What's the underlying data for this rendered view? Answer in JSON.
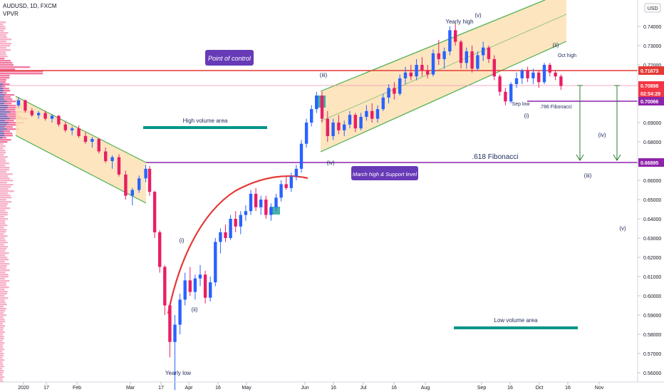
{
  "header": {
    "symbol": "AUDUSD, 1D, FXCM",
    "indicator": "VPVR",
    "currency": "USD"
  },
  "chart_data": {
    "type": "candlestick",
    "title": "AUDUSD, 1D, FXCM",
    "y_axis": {
      "range": [
        0.5555,
        0.761
      ],
      "ticks": [
        "0.74000",
        "0.73000",
        "0.72000",
        "0.71000",
        "0.70000",
        "0.69000",
        "0.68000",
        "0.67000",
        "0.66000",
        "0.65000",
        "0.64000",
        "0.63000",
        "0.62000",
        "0.61000",
        "0.60000",
        "0.59000",
        "0.58000",
        "0.57000",
        "0.56000"
      ]
    },
    "x_axis": {
      "ticks": [
        "2020",
        "17",
        "Feb",
        "Mar",
        "17",
        "Apr",
        "16",
        "May",
        "Jun",
        "16",
        "Jul",
        "16",
        "Aug",
        "Sep",
        "16",
        "Oct",
        "16",
        "Nov"
      ]
    },
    "price_tags": [
      {
        "value": "0.71673",
        "color": "#e53935"
      },
      {
        "value": "0.70898",
        "color": "#f23645"
      },
      {
        "value": "02:54:29",
        "color": "#f23645"
      },
      {
        "value": "0.70066",
        "color": "#8e24aa"
      },
      {
        "value": "0.66895",
        "color": "#8e24aa"
      }
    ],
    "levels": [
      {
        "name": "point-of-control",
        "price": 0.71673,
        "color": "#e53935"
      },
      {
        "name": "fib-786",
        "price": 0.70066,
        "color": "#8e24aa"
      },
      {
        "name": "fib-618",
        "price": 0.66895,
        "color": "#8e24aa"
      }
    ],
    "annotations": {
      "point_of_control": "Point of control",
      "high_volume_area": "High volume area",
      "low_volume_area": "Low volume area",
      "march_high": "March high & Support level",
      "fib_618": ".618 Fibonacci",
      "fib_786": ".786 Fibonacci",
      "yearly_high": "Yearly high",
      "yearly_low": "Yearly low",
      "sep_low": "Sep low",
      "oct_high": "Oct high",
      "wave_i": "(i)",
      "wave_ii": "(ii)",
      "wave_iii": "(iii)",
      "wave_iv": "(iv)",
      "wave_v": "(v)",
      "wave_iii_top": "(iii)",
      "wave_iv_low": "(iv)",
      "wave_v_high": "(v)",
      "wave_i_sep": "(i)",
      "wave_ii_oct": "(ii)",
      "proj_iii": "(iii)",
      "proj_iv": "(iv)",
      "proj_v": "(v)"
    },
    "colors": {
      "up": "#2962ff",
      "down": "#e91e63",
      "channel_fill": "#fbe0b4",
      "channel_line": "#4caf50",
      "poc_line": "#e53935",
      "fib_line": "#8e24aa",
      "volume_area_bar": "#009688",
      "label_box": "#673ab7"
    },
    "candles": [
      {
        "i": 0,
        "o": 0.699,
        "h": 0.7032,
        "l": 0.698,
        "c": 0.7016
      },
      {
        "i": 1,
        "o": 0.7016,
        "h": 0.702,
        "l": 0.6952,
        "c": 0.6962
      },
      {
        "i": 2,
        "o": 0.6962,
        "h": 0.6975,
        "l": 0.693,
        "c": 0.6938
      },
      {
        "i": 3,
        "o": 0.6938,
        "h": 0.696,
        "l": 0.692,
        "c": 0.695
      },
      {
        "i": 4,
        "o": 0.695,
        "h": 0.6962,
        "l": 0.691,
        "c": 0.692
      },
      {
        "i": 5,
        "o": 0.692,
        "h": 0.6945,
        "l": 0.69,
        "c": 0.6935
      },
      {
        "i": 6,
        "o": 0.6935,
        "h": 0.694,
        "l": 0.688,
        "c": 0.689
      },
      {
        "i": 7,
        "o": 0.689,
        "h": 0.6905,
        "l": 0.685,
        "c": 0.686
      },
      {
        "i": 8,
        "o": 0.686,
        "h": 0.688,
        "l": 0.6835,
        "c": 0.687
      },
      {
        "i": 9,
        "o": 0.687,
        "h": 0.6885,
        "l": 0.682,
        "c": 0.683
      },
      {
        "i": 10,
        "o": 0.683,
        "h": 0.685,
        "l": 0.679,
        "c": 0.68
      },
      {
        "i": 11,
        "o": 0.68,
        "h": 0.6825,
        "l": 0.677,
        "c": 0.6815
      },
      {
        "i": 12,
        "o": 0.6815,
        "h": 0.682,
        "l": 0.674,
        "c": 0.675
      },
      {
        "i": 13,
        "o": 0.675,
        "h": 0.677,
        "l": 0.669,
        "c": 0.67
      },
      {
        "i": 14,
        "o": 0.67,
        "h": 0.673,
        "l": 0.666,
        "c": 0.672
      },
      {
        "i": 15,
        "o": 0.672,
        "h": 0.6735,
        "l": 0.662,
        "c": 0.663
      },
      {
        "i": 16,
        "o": 0.663,
        "h": 0.665,
        "l": 0.65,
        "c": 0.652
      },
      {
        "i": 17,
        "o": 0.652,
        "h": 0.656,
        "l": 0.647,
        "c": 0.655
      },
      {
        "i": 18,
        "o": 0.655,
        "h": 0.6625,
        "l": 0.6535,
        "c": 0.661
      },
      {
        "i": 19,
        "o": 0.661,
        "h": 0.668,
        "l": 0.659,
        "c": 0.666
      },
      {
        "i": 20,
        "o": 0.666,
        "h": 0.6675,
        "l": 0.652,
        "c": 0.654
      },
      {
        "i": 21,
        "o": 0.654,
        "h": 0.6545,
        "l": 0.63,
        "c": 0.633
      },
      {
        "i": 22,
        "o": 0.633,
        "h": 0.634,
        "l": 0.612,
        "c": 0.615
      },
      {
        "i": 23,
        "o": 0.615,
        "h": 0.616,
        "l": 0.59,
        "c": 0.595
      },
      {
        "i": 24,
        "o": 0.595,
        "h": 0.596,
        "l": 0.568,
        "c": 0.576
      },
      {
        "i": 25,
        "o": 0.576,
        "h": 0.59,
        "l": 0.551,
        "c": 0.585
      },
      {
        "i": 26,
        "o": 0.585,
        "h": 0.601,
        "l": 0.58,
        "c": 0.598
      },
      {
        "i": 27,
        "o": 0.598,
        "h": 0.612,
        "l": 0.595,
        "c": 0.608
      },
      {
        "i": 28,
        "o": 0.608,
        "h": 0.615,
        "l": 0.6,
        "c": 0.602
      },
      {
        "i": 29,
        "o": 0.602,
        "h": 0.611,
        "l": 0.598,
        "c": 0.609
      },
      {
        "i": 30,
        "o": 0.609,
        "h": 0.616,
        "l": 0.605,
        "c": 0.611
      },
      {
        "i": 31,
        "o": 0.611,
        "h": 0.613,
        "l": 0.596,
        "c": 0.599
      },
      {
        "i": 32,
        "o": 0.599,
        "h": 0.61,
        "l": 0.597,
        "c": 0.607
      },
      {
        "i": 33,
        "o": 0.607,
        "h": 0.63,
        "l": 0.605,
        "c": 0.628
      },
      {
        "i": 34,
        "o": 0.628,
        "h": 0.635,
        "l": 0.622,
        "c": 0.633
      },
      {
        "i": 35,
        "o": 0.633,
        "h": 0.637,
        "l": 0.628,
        "c": 0.63
      },
      {
        "i": 36,
        "o": 0.63,
        "h": 0.642,
        "l": 0.629,
        "c": 0.64
      },
      {
        "i": 37,
        "o": 0.64,
        "h": 0.644,
        "l": 0.633,
        "c": 0.636
      },
      {
        "i": 38,
        "o": 0.636,
        "h": 0.644,
        "l": 0.632,
        "c": 0.642
      },
      {
        "i": 39,
        "o": 0.642,
        "h": 0.647,
        "l": 0.639,
        "c": 0.644
      },
      {
        "i": 40,
        "o": 0.644,
        "h": 0.655,
        "l": 0.642,
        "c": 0.653
      },
      {
        "i": 41,
        "o": 0.653,
        "h": 0.656,
        "l": 0.644,
        "c": 0.646
      },
      {
        "i": 42,
        "o": 0.646,
        "h": 0.652,
        "l": 0.642,
        "c": 0.65
      },
      {
        "i": 43,
        "o": 0.65,
        "h": 0.652,
        "l": 0.64,
        "c": 0.642
      },
      {
        "i": 44,
        "o": 0.642,
        "h": 0.648,
        "l": 0.639,
        "c": 0.646
      },
      {
        "i": 45,
        "o": 0.646,
        "h": 0.653,
        "l": 0.644,
        "c": 0.651
      },
      {
        "i": 46,
        "o": 0.651,
        "h": 0.66,
        "l": 0.649,
        "c": 0.658
      },
      {
        "i": 47,
        "o": 0.658,
        "h": 0.662,
        "l": 0.655,
        "c": 0.656
      },
      {
        "i": 48,
        "o": 0.656,
        "h": 0.664,
        "l": 0.654,
        "c": 0.662
      },
      {
        "i": 49,
        "o": 0.662,
        "h": 0.668,
        "l": 0.66,
        "c": 0.666
      },
      {
        "i": 50,
        "o": 0.666,
        "h": 0.681,
        "l": 0.664,
        "c": 0.679
      },
      {
        "i": 51,
        "o": 0.679,
        "h": 0.692,
        "l": 0.677,
        "c": 0.69
      },
      {
        "i": 52,
        "o": 0.69,
        "h": 0.699,
        "l": 0.688,
        "c": 0.697
      },
      {
        "i": 53,
        "o": 0.697,
        "h": 0.706,
        "l": 0.695,
        "c": 0.704
      },
      {
        "i": 54,
        "o": 0.704,
        "h": 0.706,
        "l": 0.69,
        "c": 0.692
      },
      {
        "i": 55,
        "o": 0.692,
        "h": 0.696,
        "l": 0.68,
        "c": 0.683
      },
      {
        "i": 56,
        "o": 0.683,
        "h": 0.692,
        "l": 0.681,
        "c": 0.69
      },
      {
        "i": 57,
        "o": 0.69,
        "h": 0.694,
        "l": 0.684,
        "c": 0.686
      },
      {
        "i": 58,
        "o": 0.686,
        "h": 0.691,
        "l": 0.683,
        "c": 0.689
      },
      {
        "i": 59,
        "o": 0.689,
        "h": 0.696,
        "l": 0.687,
        "c": 0.694
      },
      {
        "i": 60,
        "o": 0.694,
        "h": 0.695,
        "l": 0.685,
        "c": 0.687
      },
      {
        "i": 61,
        "o": 0.687,
        "h": 0.695,
        "l": 0.686,
        "c": 0.693
      },
      {
        "i": 62,
        "o": 0.693,
        "h": 0.699,
        "l": 0.691,
        "c": 0.696
      },
      {
        "i": 63,
        "o": 0.696,
        "h": 0.7,
        "l": 0.69,
        "c": 0.692
      },
      {
        "i": 64,
        "o": 0.692,
        "h": 0.699,
        "l": 0.69,
        "c": 0.697
      },
      {
        "i": 65,
        "o": 0.697,
        "h": 0.705,
        "l": 0.696,
        "c": 0.703
      },
      {
        "i": 66,
        "o": 0.703,
        "h": 0.71,
        "l": 0.7,
        "c": 0.708
      },
      {
        "i": 67,
        "o": 0.708,
        "h": 0.711,
        "l": 0.702,
        "c": 0.705
      },
      {
        "i": 68,
        "o": 0.705,
        "h": 0.715,
        "l": 0.704,
        "c": 0.713
      },
      {
        "i": 69,
        "o": 0.713,
        "h": 0.719,
        "l": 0.71,
        "c": 0.716
      },
      {
        "i": 70,
        "o": 0.716,
        "h": 0.72,
        "l": 0.712,
        "c": 0.714
      },
      {
        "i": 71,
        "o": 0.714,
        "h": 0.723,
        "l": 0.712,
        "c": 0.72
      },
      {
        "i": 72,
        "o": 0.72,
        "h": 0.724,
        "l": 0.714,
        "c": 0.717
      },
      {
        "i": 73,
        "o": 0.717,
        "h": 0.72,
        "l": 0.713,
        "c": 0.715
      },
      {
        "i": 74,
        "o": 0.715,
        "h": 0.728,
        "l": 0.714,
        "c": 0.726
      },
      {
        "i": 75,
        "o": 0.726,
        "h": 0.733,
        "l": 0.72,
        "c": 0.723
      },
      {
        "i": 76,
        "o": 0.723,
        "h": 0.729,
        "l": 0.718,
        "c": 0.727
      },
      {
        "i": 77,
        "o": 0.727,
        "h": 0.74,
        "l": 0.725,
        "c": 0.738
      },
      {
        "i": 78,
        "o": 0.738,
        "h": 0.7415,
        "l": 0.73,
        "c": 0.732
      },
      {
        "i": 79,
        "o": 0.732,
        "h": 0.733,
        "l": 0.718,
        "c": 0.721
      },
      {
        "i": 80,
        "o": 0.721,
        "h": 0.729,
        "l": 0.718,
        "c": 0.727
      },
      {
        "i": 81,
        "o": 0.727,
        "h": 0.73,
        "l": 0.716,
        "c": 0.718
      },
      {
        "i": 82,
        "o": 0.718,
        "h": 0.727,
        "l": 0.717,
        "c": 0.725
      },
      {
        "i": 83,
        "o": 0.725,
        "h": 0.732,
        "l": 0.722,
        "c": 0.729
      },
      {
        "i": 84,
        "o": 0.729,
        "h": 0.73,
        "l": 0.721,
        "c": 0.723
      },
      {
        "i": 85,
        "o": 0.723,
        "h": 0.725,
        "l": 0.712,
        "c": 0.714
      },
      {
        "i": 86,
        "o": 0.714,
        "h": 0.715,
        "l": 0.704,
        "c": 0.706
      },
      {
        "i": 87,
        "o": 0.706,
        "h": 0.708,
        "l": 0.699,
        "c": 0.701
      },
      {
        "i": 88,
        "o": 0.701,
        "h": 0.711,
        "l": 0.7,
        "c": 0.71
      },
      {
        "i": 89,
        "o": 0.71,
        "h": 0.716,
        "l": 0.708,
        "c": 0.713
      },
      {
        "i": 90,
        "o": 0.713,
        "h": 0.718,
        "l": 0.71,
        "c": 0.717
      },
      {
        "i": 91,
        "o": 0.717,
        "h": 0.719,
        "l": 0.711,
        "c": 0.713
      },
      {
        "i": 92,
        "o": 0.713,
        "h": 0.718,
        "l": 0.71,
        "c": 0.716
      },
      {
        "i": 93,
        "o": 0.716,
        "h": 0.717,
        "l": 0.708,
        "c": 0.711
      },
      {
        "i": 94,
        "o": 0.711,
        "h": 0.721,
        "l": 0.71,
        "c": 0.72
      },
      {
        "i": 95,
        "o": 0.72,
        "h": 0.721,
        "l": 0.714,
        "c": 0.716
      },
      {
        "i": 96,
        "o": 0.716,
        "h": 0.717,
        "l": 0.712,
        "c": 0.714
      },
      {
        "i": 97,
        "o": 0.714,
        "h": 0.715,
        "l": 0.707,
        "c": 0.709
      }
    ],
    "curve": "rounded bottom from Yearly low to March high",
    "legend": "none",
    "grid": false
  }
}
